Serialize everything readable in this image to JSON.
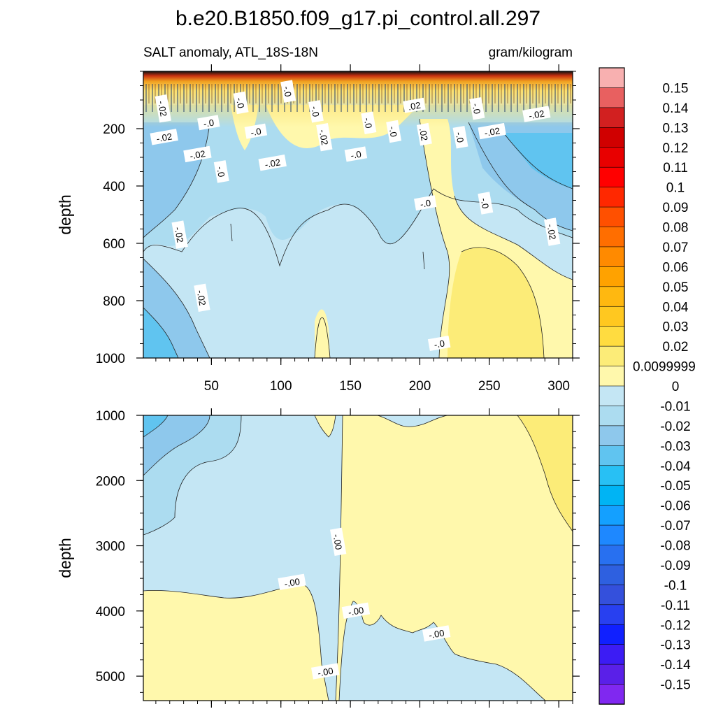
{
  "chart_data": {
    "type": "heatmap",
    "title": "b.e20.B1850.f09_g17.pi_control.all.297",
    "left_subtitle": "SALT anomaly, ATL_18S-18N",
    "right_subtitle": "gram/kilogram",
    "panels": [
      {
        "name": "upper",
        "ylabel": "depth",
        "ylim": [
          0,
          1000
        ],
        "xlim": [
          1,
          310
        ],
        "yticks": [
          200,
          400,
          600,
          800,
          1000
        ],
        "xticks": [
          50,
          100,
          150,
          200,
          250,
          300
        ],
        "contour_labels": [
          {
            "text": "-.02",
            "x": 15,
            "y": 130
          },
          {
            "text": "-.0",
            "x": 71,
            "y": 110
          },
          {
            "text": "-.0",
            "x": 105,
            "y": 70
          },
          {
            "text": "-.0",
            "x": 125,
            "y": 140
          },
          {
            "text": ".02",
            "x": 196,
            "y": 120
          },
          {
            "text": "-.0",
            "x": 241,
            "y": 130
          },
          {
            "text": "-.02",
            "x": 284,
            "y": 150
          },
          {
            "text": "-.02",
            "x": 16,
            "y": 230
          },
          {
            "text": "-.0",
            "x": 48,
            "y": 180
          },
          {
            "text": "-.0",
            "x": 82,
            "y": 210
          },
          {
            "text": "-.02",
            "x": 131,
            "y": 230
          },
          {
            "text": "-.0",
            "x": 163,
            "y": 180
          },
          {
            "text": "-.0",
            "x": 181,
            "y": 210
          },
          {
            "text": ".02",
            "x": 203,
            "y": 220
          },
          {
            "text": "-.0",
            "x": 229,
            "y": 230
          },
          {
            "text": "-.02",
            "x": 252,
            "y": 210
          },
          {
            "text": "-.02",
            "x": 40,
            "y": 290
          },
          {
            "text": "-.02",
            "x": 94,
            "y": 320
          },
          {
            "text": "-.0",
            "x": 154,
            "y": 290
          },
          {
            "text": "-.0",
            "x": 57,
            "y": 350
          },
          {
            "text": "-.0",
            "x": 204,
            "y": 460
          },
          {
            "text": "-.0",
            "x": 247,
            "y": 460
          },
          {
            "text": "-.02",
            "x": 27,
            "y": 570
          },
          {
            "text": "-.02",
            "x": 295,
            "y": 560
          },
          {
            "text": "-.02",
            "x": 43,
            "y": 790
          },
          {
            "text": "-.0",
            "x": 214,
            "y": 950
          }
        ]
      },
      {
        "name": "lower",
        "ylabel": "depth",
        "ylim": [
          1000,
          5375
        ],
        "xlim": [
          1,
          310
        ],
        "yticks": [
          1000,
          2000,
          3000,
          4000,
          5000
        ],
        "contour_labels": [
          {
            "text": "-.00",
            "x": 141,
            "y": 2940
          },
          {
            "text": "-.00",
            "x": 108,
            "y": 3560
          },
          {
            "text": "-.00",
            "x": 154,
            "y": 4000
          },
          {
            "text": "-.00",
            "x": 212,
            "y": 4350
          },
          {
            "text": "-.00",
            "x": 132,
            "y": 4930
          }
        ]
      }
    ],
    "colorbar": {
      "labels": [
        "0.15",
        "0.14",
        "0.13",
        "0.12",
        "0.11",
        "0.1",
        "0.09",
        "0.08",
        "0.07",
        "0.06",
        "0.05",
        "0.04",
        "0.03",
        "0.02",
        "0.0099999",
        "0",
        "-0.01",
        "-0.02",
        "-0.03",
        "-0.04",
        "-0.05",
        "-0.06",
        "-0.07",
        "-0.08",
        "-0.09",
        "-0.1",
        "-0.11",
        "-0.12",
        "-0.13",
        "-0.14",
        "-0.15"
      ],
      "colors": [
        "#f8b0b0",
        "#e86060",
        "#d22020",
        "#d00000",
        "#e80000",
        "#ff0000",
        "#ff2800",
        "#ff5000",
        "#ff6e00",
        "#ff8a00",
        "#ffa200",
        "#ffb810",
        "#ffc820",
        "#ffdc40",
        "#fcec78",
        "#fff8ac",
        "#c4e6f4",
        "#acdcf0",
        "#8ec8ec",
        "#60c4f0",
        "#28c0f4",
        "#00b4f4",
        "#14a0ff",
        "#1e88ff",
        "#2870f0",
        "#2e60e0",
        "#3450dc",
        "#2840f0",
        "#1020ff",
        "#3c1cf4",
        "#5a20e8",
        "#8028f0"
      ]
    }
  }
}
